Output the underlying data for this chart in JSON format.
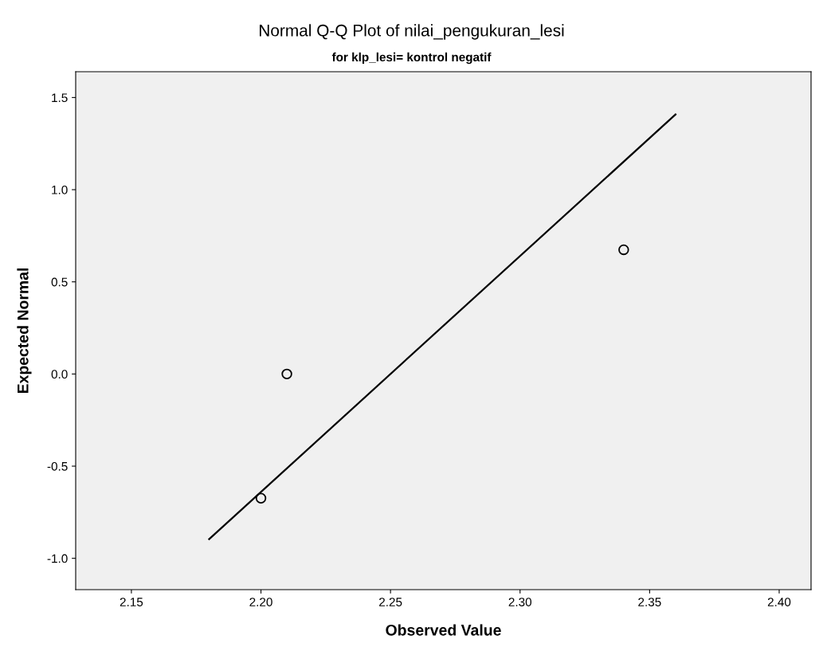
{
  "chart_data": {
    "type": "scatter",
    "title": "Normal Q-Q Plot of nilai_pengukuran_lesi",
    "subtitle": "for klp_lesi= kontrol negatif",
    "xlabel": "Observed Value",
    "ylabel": "Expected Normal",
    "series": [
      {
        "x": [
          2.2,
          2.21,
          2.34
        ],
        "values": [
          -0.674,
          0.0,
          0.674
        ],
        "color": "#000000",
        "marker": "circle"
      },
      {
        "type": "line",
        "x": [
          2.18,
          2.36
        ],
        "values": [
          -0.896,
          1.408
        ],
        "color": "#000000",
        "marker": "none",
        "line_style": "solid"
      }
    ],
    "xlim": [
      2.1285,
      2.4123
    ],
    "xticks": [
      {
        "value": 2.15,
        "label": "2.15"
      },
      {
        "value": 2.2,
        "label": "2.20"
      },
      {
        "value": 2.25,
        "label": "2.25"
      },
      {
        "value": 2.3,
        "label": "2.30"
      },
      {
        "value": 2.35,
        "label": "2.35"
      },
      {
        "value": 2.4,
        "label": "2.40"
      }
    ],
    "ylim": [
      -1.17,
      1.64
    ],
    "yticks": [
      {
        "value": -1.0,
        "label": "-1.0"
      },
      {
        "value": -0.5,
        "label": "-0.5"
      },
      {
        "value": 0.0,
        "label": "0.0"
      },
      {
        "value": 0.5,
        "label": "0.5"
      },
      {
        "value": 1.0,
        "label": "1.0"
      },
      {
        "value": 1.5,
        "label": "1.5"
      }
    ],
    "grid": false,
    "legend": false
  }
}
